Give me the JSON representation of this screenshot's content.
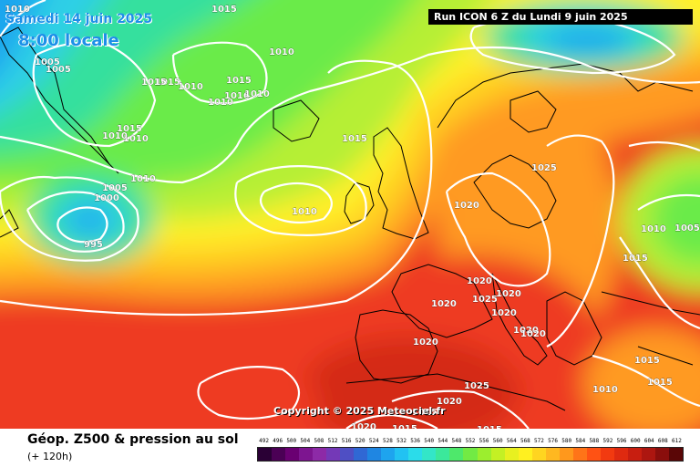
{
  "header": {
    "date": "Samedi 14 juin 2025",
    "time": "8:00 locale",
    "run": "Run ICON 6 Z du Lundi 9 juin 2025"
  },
  "map": {
    "copyright": "Copyright © 2025 Meteociel.fr",
    "pressure_labels": [
      "1010",
      "1015",
      "1010",
      "1015",
      "1005",
      "1005",
      "1015",
      "1010",
      "1015",
      "1010",
      "1016",
      "1010",
      "1010",
      "1015",
      "1010",
      "1015",
      "1010",
      "1005",
      "1000",
      "995",
      "1010",
      "1015",
      "1020",
      "1025",
      "1010",
      "1005",
      "1015",
      "1020",
      "1020",
      "1025",
      "1020",
      "1020",
      "1020",
      "1020",
      "1020",
      "1025",
      "1020",
      "1015",
      "1020",
      "1015",
      "1015",
      "1010",
      "1015",
      "1015"
    ],
    "colors": {
      "land_sea_outline": "#000000",
      "isobar": "#ffffff"
    }
  },
  "footer": {
    "title": "Géop. Z500 & pression au sol",
    "subtitle": "(+ 120h)",
    "scale_labels": [
      "492",
      "496",
      "500",
      "504",
      "508",
      "512",
      "516",
      "520",
      "524",
      "528",
      "532",
      "536",
      "540",
      "544",
      "548",
      "552",
      "556",
      "560",
      "564",
      "568",
      "572",
      "576",
      "580",
      "584",
      "588",
      "592",
      "596",
      "600",
      "604",
      "608",
      "612"
    ],
    "scale_colors": [
      "#2a0035",
      "#4b0055",
      "#6a0072",
      "#7d1590",
      "#8d2aa7",
      "#7439b7",
      "#4f4fc4",
      "#3068d4",
      "#1f86e2",
      "#1ea4ee",
      "#22c2f2",
      "#2bdcea",
      "#33e6c8",
      "#3be89b",
      "#4ee86b",
      "#72ea44",
      "#9cee2e",
      "#c4f024",
      "#e8f020",
      "#fff020",
      "#ffd520",
      "#ffb820",
      "#ff981c",
      "#ff7418",
      "#ff5214",
      "#f23a10",
      "#df2a10",
      "#c81e10",
      "#ad1610",
      "#8a0e0c",
      "#5a0606"
    ]
  }
}
